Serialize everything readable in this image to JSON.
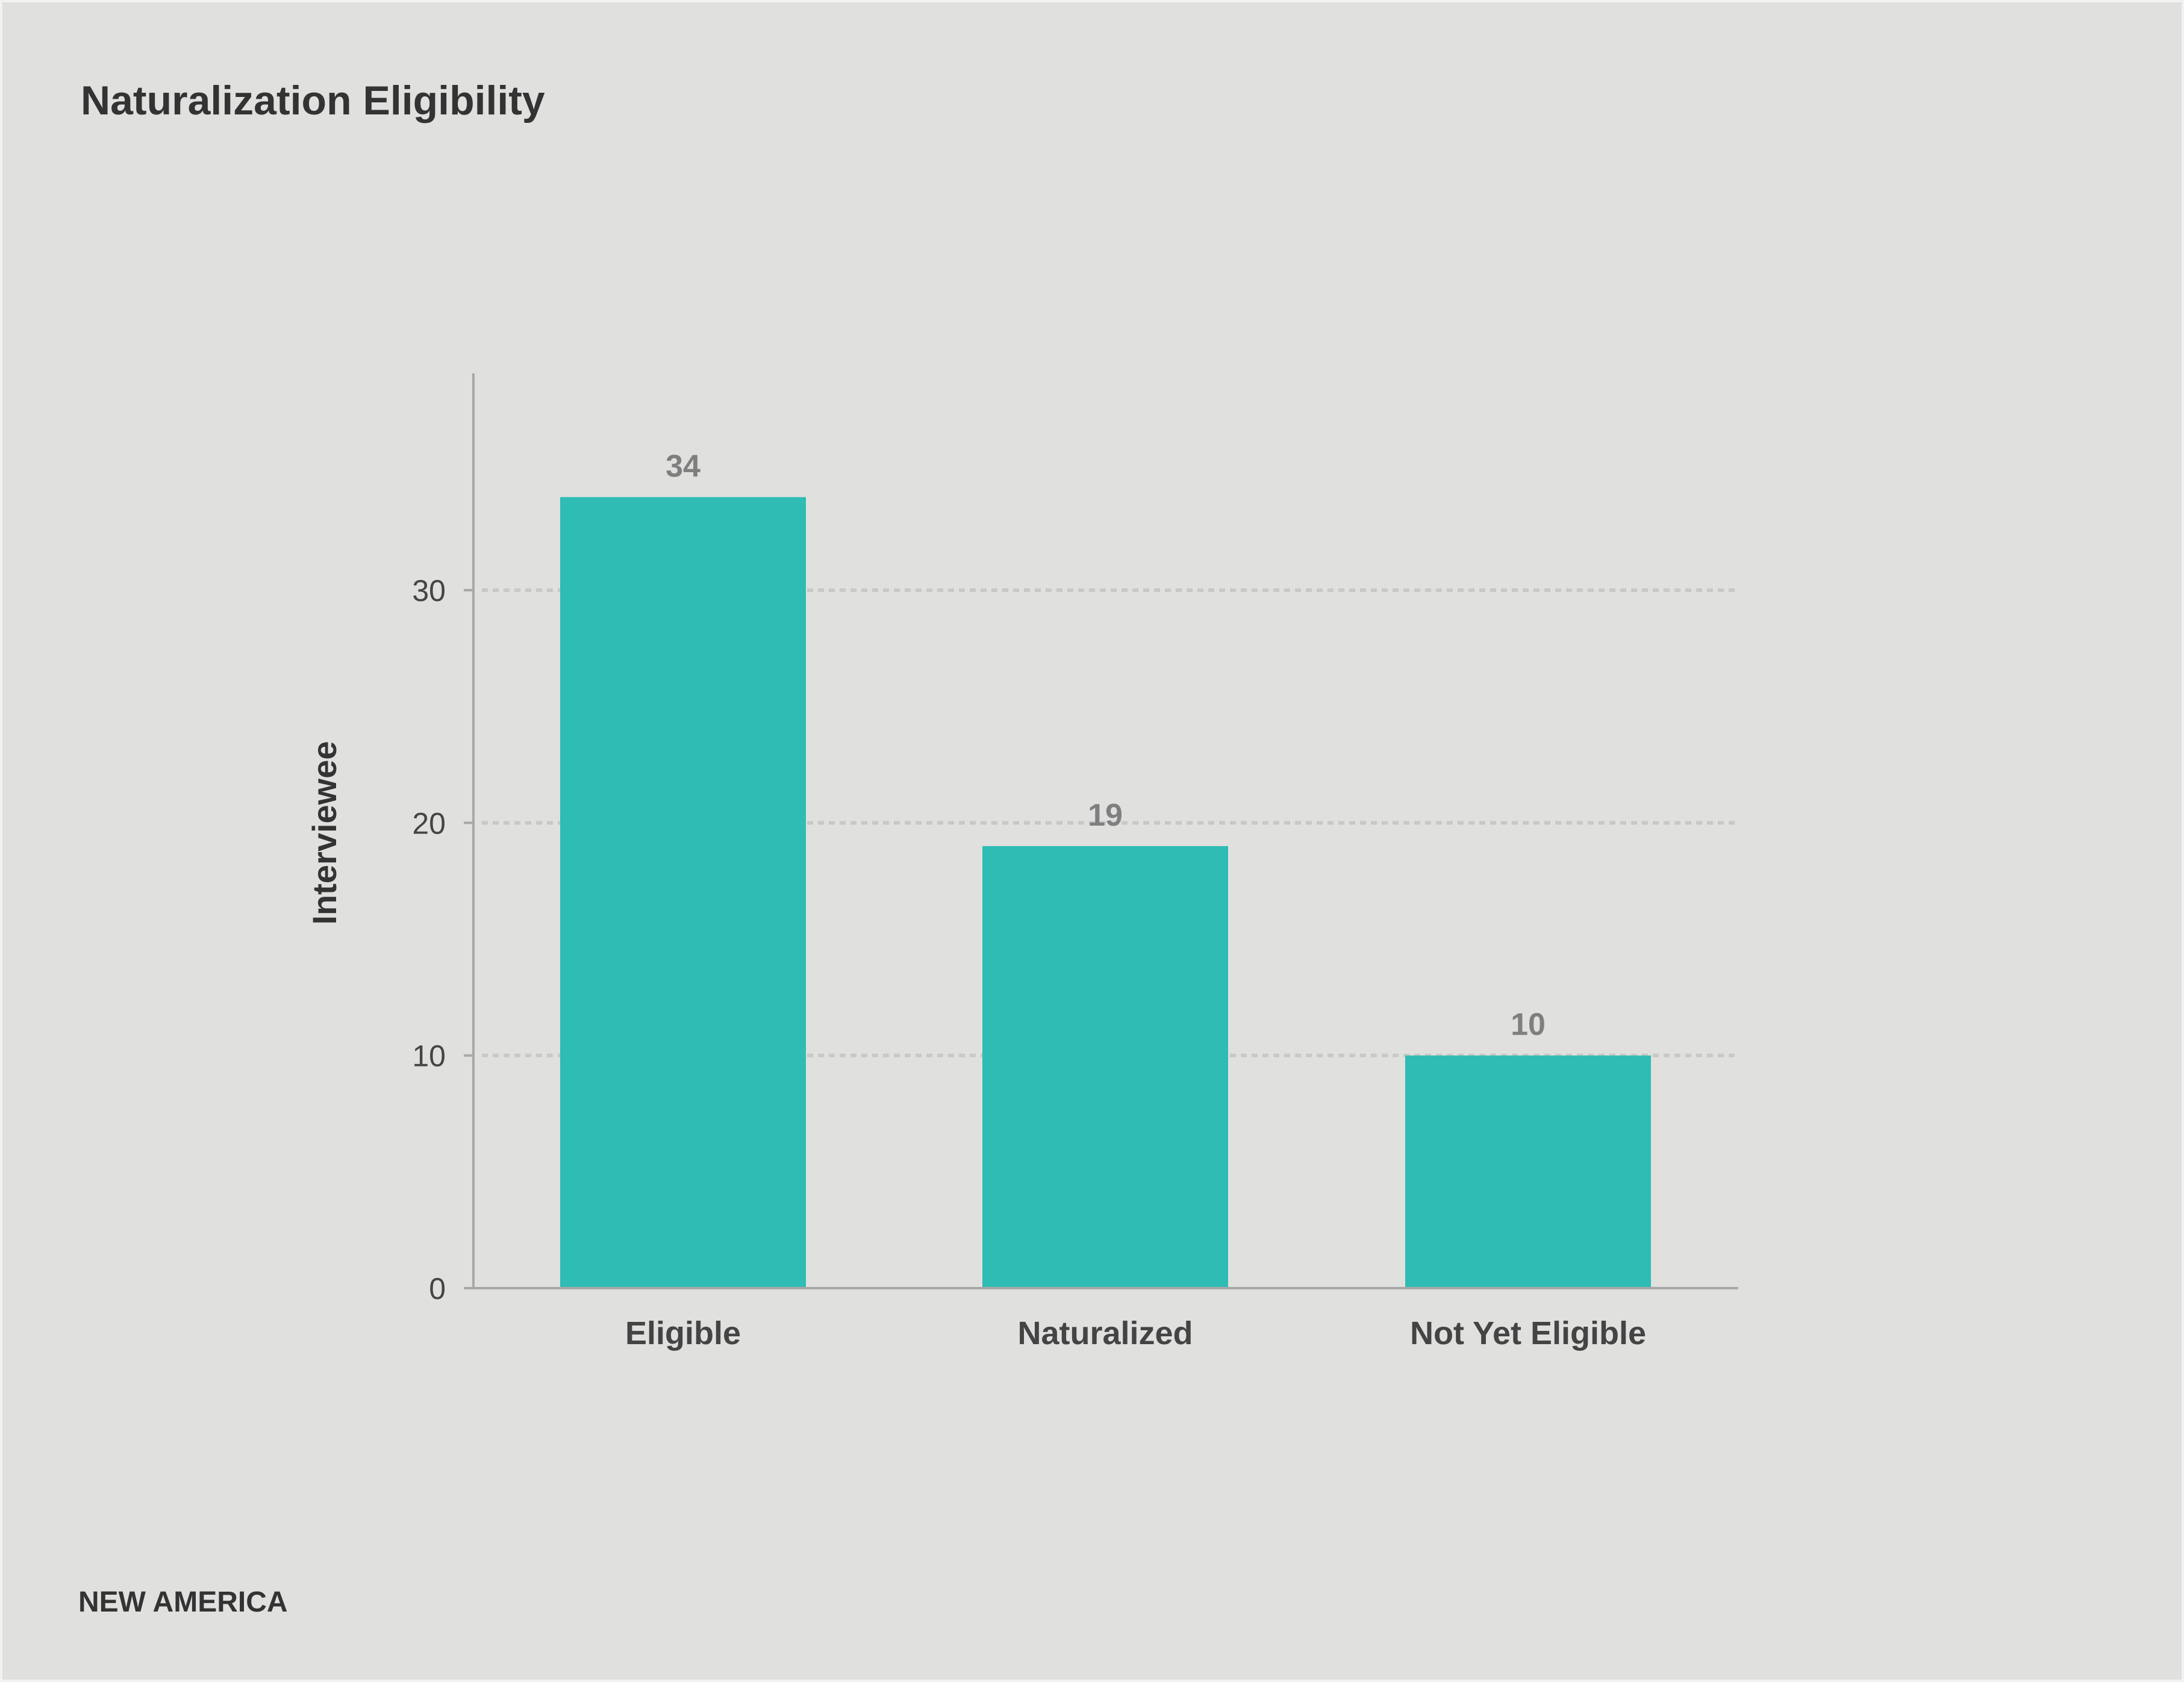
{
  "chart_data": {
    "type": "bar",
    "title": "Naturalization Eligibility",
    "categories": [
      "Eligible",
      "Naturalized",
      "Not Yet Eligible"
    ],
    "values": [
      34,
      19,
      10
    ],
    "xlabel": "",
    "ylabel": "Interviewee",
    "ylim": [
      0,
      35
    ],
    "yticks": [
      0,
      10,
      20,
      30
    ],
    "grid": true,
    "bar_color": "#2ebcb4",
    "value_labels": [
      "34",
      "19",
      "10"
    ]
  },
  "footer": {
    "brand": "NEW AMERICA"
  },
  "colors": {
    "background": "#e0e0de",
    "axis": "#a8a8a8",
    "grid": "#c8c8c8"
  }
}
